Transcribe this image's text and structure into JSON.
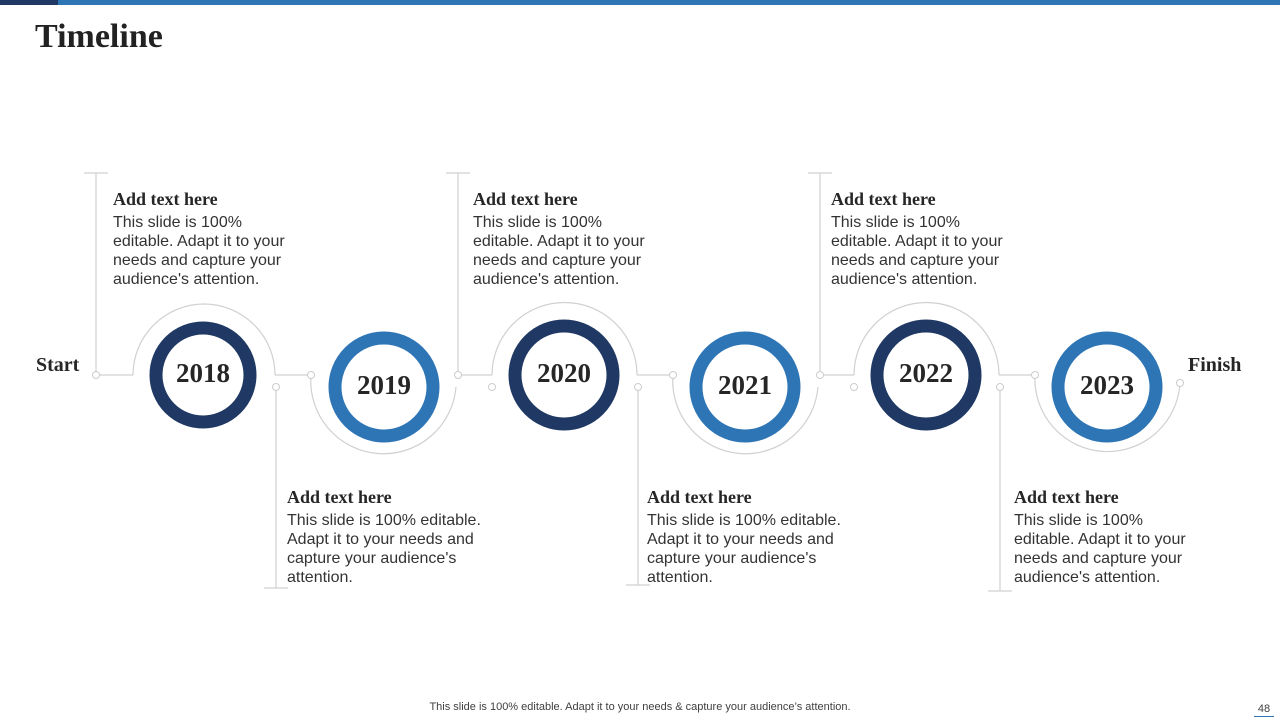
{
  "title": "Timeline",
  "start_label": "Start",
  "finish_label": "Finish",
  "milestones": [
    {
      "year": "2018",
      "heading": "Add text here",
      "body": "This slide is 100% editable. Adapt it to your needs and capture your audience's attention."
    },
    {
      "year": "2019",
      "heading": "Add text here",
      "body": "This slide is 100% editable. Adapt it to your needs and capture your audience's attention."
    },
    {
      "year": "2020",
      "heading": "Add text here",
      "body": "This slide is 100% editable. Adapt it to your needs and capture your audience's attention."
    },
    {
      "year": "2021",
      "heading": "Add text here",
      "body": "This slide is 100% editable. Adapt it to your needs and capture your audience's attention."
    },
    {
      "year": "2022",
      "heading": "Add text here",
      "body": "This slide is 100% editable. Adapt it to your needs and capture your audience's attention."
    },
    {
      "year": "2023",
      "heading": "Add text here",
      "body": "This slide is 100% editable. Adapt it to your needs and capture your audience's attention."
    }
  ],
  "footer": "This slide is 100% editable. Adapt it to your needs & capture your audience’s attention.",
  "page_number": "48",
  "colors": {
    "dark_blue": "#1f3864",
    "mid_blue": "#2e75b6",
    "connector_gray": "#d0d0d0"
  }
}
